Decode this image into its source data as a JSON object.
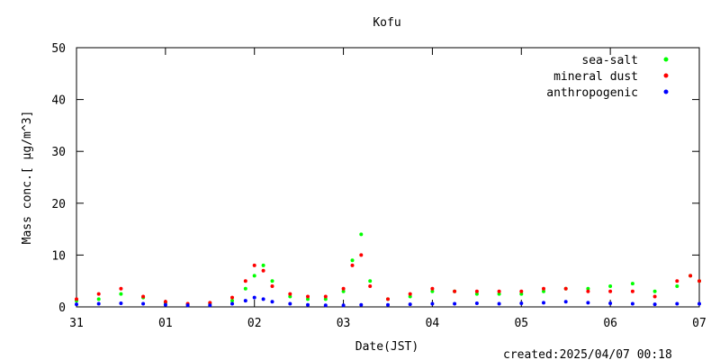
{
  "chart_data": {
    "type": "scatter",
    "title": "Kofu",
    "xlabel": "Date(JST)",
    "ylabel": "Mass conc.[ μg/m^3]",
    "created": "created:2025/04/07 00:18",
    "ylim": [
      0,
      50
    ],
    "xlim": [
      0,
      7
    ],
    "y_ticks": [
      0,
      10,
      20,
      30,
      40,
      50
    ],
    "x_ticks": [
      {
        "x": 0,
        "label": "31"
      },
      {
        "x": 1,
        "label": "01"
      },
      {
        "x": 2,
        "label": "02"
      },
      {
        "x": 3,
        "label": "03"
      },
      {
        "x": 4,
        "label": "04"
      },
      {
        "x": 5,
        "label": "05"
      },
      {
        "x": 6,
        "label": "06"
      },
      {
        "x": 7,
        "label": "07"
      }
    ],
    "legend_position": "top-right",
    "grid": false,
    "series": [
      {
        "name": "sea-salt",
        "color": "#00ff00",
        "values": [
          [
            0.0,
            1.2
          ],
          [
            0.25,
            1.5
          ],
          [
            0.5,
            2.5
          ],
          [
            0.75,
            1.8
          ],
          [
            1.0,
            0.8
          ],
          [
            1.25,
            0.5
          ],
          [
            1.5,
            0.6
          ],
          [
            1.75,
            1.2
          ],
          [
            1.9,
            3.5
          ],
          [
            2.0,
            6.0
          ],
          [
            2.1,
            8.0
          ],
          [
            2.2,
            5.0
          ],
          [
            2.4,
            2.0
          ],
          [
            2.6,
            1.5
          ],
          [
            2.8,
            1.5
          ],
          [
            3.0,
            3.0
          ],
          [
            3.1,
            9.0
          ],
          [
            3.2,
            14.0
          ],
          [
            3.3,
            5.0
          ],
          [
            3.5,
            1.5
          ],
          [
            3.75,
            2.0
          ],
          [
            4.0,
            3.0
          ],
          [
            4.25,
            3.0
          ],
          [
            4.5,
            2.5
          ],
          [
            4.75,
            2.5
          ],
          [
            5.0,
            2.5
          ],
          [
            5.25,
            3.0
          ],
          [
            5.5,
            3.5
          ],
          [
            5.75,
            3.5
          ],
          [
            6.0,
            4.0
          ],
          [
            6.25,
            4.5
          ],
          [
            6.5,
            3.0
          ],
          [
            6.75,
            4.0
          ],
          [
            6.9,
            6.0
          ],
          [
            7.0,
            5.0
          ]
        ]
      },
      {
        "name": "mineral dust",
        "color": "#ff0000",
        "values": [
          [
            0.0,
            1.5
          ],
          [
            0.25,
            2.5
          ],
          [
            0.5,
            3.5
          ],
          [
            0.75,
            2.0
          ],
          [
            1.0,
            1.0
          ],
          [
            1.25,
            0.6
          ],
          [
            1.5,
            0.8
          ],
          [
            1.75,
            1.8
          ],
          [
            1.9,
            5.0
          ],
          [
            2.0,
            8.0
          ],
          [
            2.1,
            7.0
          ],
          [
            2.2,
            4.0
          ],
          [
            2.4,
            2.5
          ],
          [
            2.6,
            2.0
          ],
          [
            2.8,
            2.0
          ],
          [
            3.0,
            3.5
          ],
          [
            3.1,
            8.0
          ],
          [
            3.2,
            10.0
          ],
          [
            3.3,
            4.0
          ],
          [
            3.5,
            1.5
          ],
          [
            3.75,
            2.5
          ],
          [
            4.0,
            3.5
          ],
          [
            4.25,
            3.0
          ],
          [
            4.5,
            3.0
          ],
          [
            4.75,
            3.0
          ],
          [
            5.0,
            3.0
          ],
          [
            5.25,
            3.5
          ],
          [
            5.5,
            3.5
          ],
          [
            5.75,
            3.0
          ],
          [
            6.0,
            3.0
          ],
          [
            6.25,
            3.0
          ],
          [
            6.5,
            2.0
          ],
          [
            6.75,
            5.0
          ],
          [
            6.9,
            6.0
          ],
          [
            7.0,
            5.0
          ]
        ]
      },
      {
        "name": "anthropogenic",
        "color": "#0000ff",
        "values": [
          [
            0.0,
            0.5
          ],
          [
            0.25,
            0.6
          ],
          [
            0.5,
            0.7
          ],
          [
            0.75,
            0.6
          ],
          [
            1.0,
            0.4
          ],
          [
            1.25,
            0.3
          ],
          [
            1.5,
            0.3
          ],
          [
            1.75,
            0.6
          ],
          [
            1.9,
            1.2
          ],
          [
            2.0,
            1.8
          ],
          [
            2.1,
            1.5
          ],
          [
            2.2,
            1.0
          ],
          [
            2.4,
            0.6
          ],
          [
            2.6,
            0.4
          ],
          [
            2.8,
            0.3
          ],
          [
            3.0,
            0.3
          ],
          [
            3.2,
            0.4
          ],
          [
            3.5,
            0.4
          ],
          [
            3.75,
            0.5
          ],
          [
            4.0,
            0.6
          ],
          [
            4.25,
            0.6
          ],
          [
            4.5,
            0.7
          ],
          [
            4.75,
            0.6
          ],
          [
            5.0,
            0.7
          ],
          [
            5.25,
            0.8
          ],
          [
            5.5,
            1.0
          ],
          [
            5.75,
            0.8
          ],
          [
            6.0,
            0.7
          ],
          [
            6.25,
            0.6
          ],
          [
            6.5,
            0.5
          ],
          [
            6.75,
            0.6
          ],
          [
            7.0,
            0.6
          ]
        ]
      }
    ]
  }
}
